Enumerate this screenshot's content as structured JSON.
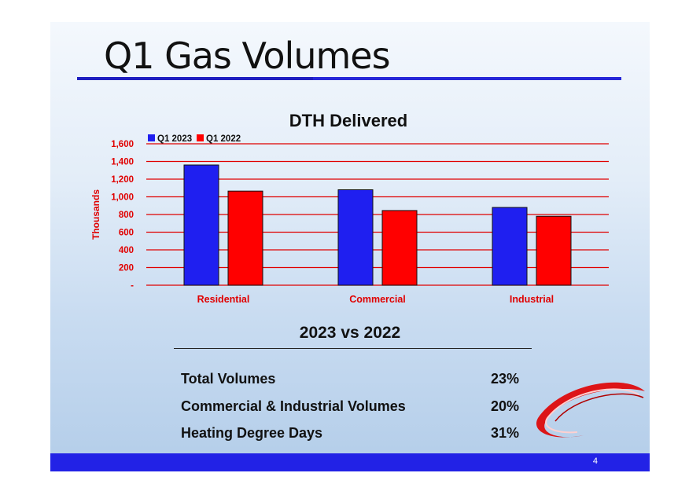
{
  "slide": {
    "title": "Q1 Gas Volumes",
    "page_number": "4",
    "colors": {
      "title_rule": "#2727d8",
      "footer": "#2222e6",
      "accent_red": "#e00000"
    }
  },
  "chart_data": {
    "type": "bar",
    "title": "DTH Delivered",
    "ylabel": "Thousands",
    "xlabel": "",
    "categories": [
      "Residential",
      "Commercial",
      "Industrial"
    ],
    "series": [
      {
        "name": "Q1 2023",
        "color": "#1f1ff0",
        "values": [
          1360,
          1080,
          880
        ]
      },
      {
        "name": "Q1 2022",
        "color": "#ff0000",
        "values": [
          1065,
          845,
          780
        ]
      }
    ],
    "ylim": [
      0,
      1600
    ],
    "yticks": [
      0,
      200,
      400,
      600,
      800,
      1000,
      1200,
      1400,
      1600
    ],
    "ytick_labels": [
      "-",
      "200",
      "400",
      "600",
      "800",
      "1,000",
      "1,200",
      "1,400",
      "1,600"
    ],
    "legend": "top-left",
    "grid": true
  },
  "comparison": {
    "heading": "2023 vs 2022",
    "rows": [
      {
        "label": "Total Volumes",
        "value": "23%"
      },
      {
        "label": "Commercial & Industrial Volumes",
        "value": "20%"
      },
      {
        "label": "Heating Degree Days",
        "value": "31%"
      }
    ]
  }
}
